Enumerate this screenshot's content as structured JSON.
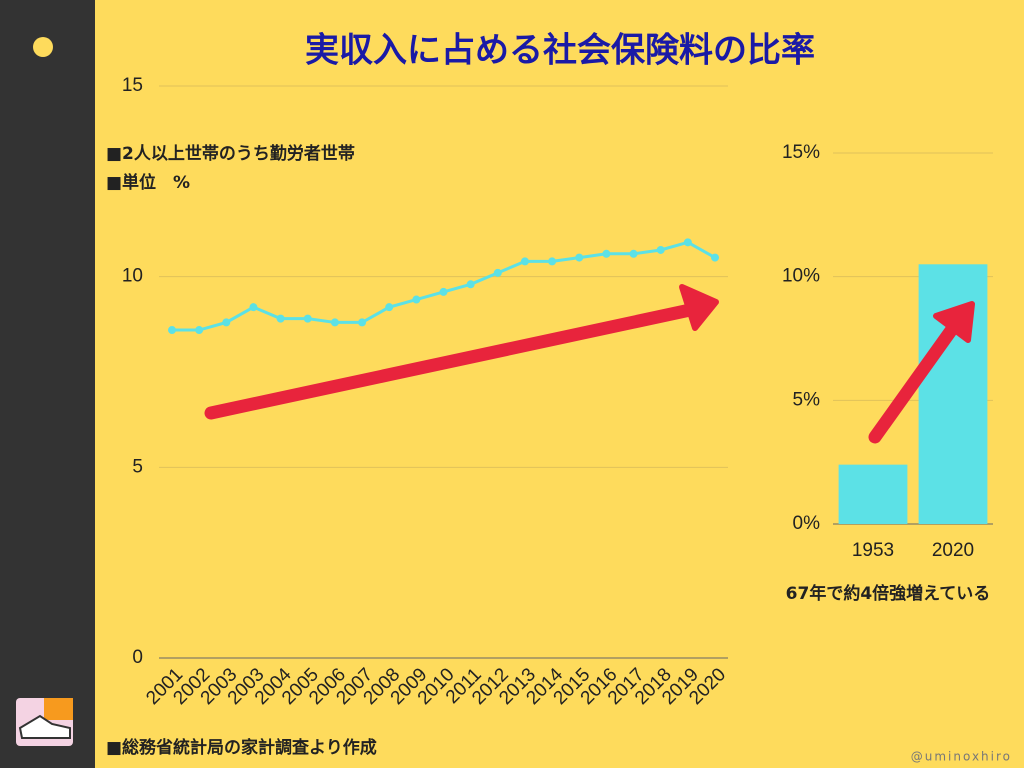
{
  "title": "実収入に占める社会保険料の比率",
  "credit": "@uminoxhiro",
  "chart_data": [
    {
      "type": "line",
      "notes": [
        "■2人以上世帯のうち勤労者世帯",
        "■単位　%"
      ],
      "source": "■総務省統計局の家計調査より作成",
      "categories": [
        "2001",
        "2002",
        "2003",
        "2003",
        "2004",
        "2005",
        "2006",
        "2007",
        "2008",
        "2009",
        "2010",
        "2011",
        "2012",
        "2013",
        "2014",
        "2015",
        "2016",
        "2017",
        "2018",
        "2019",
        "2020"
      ],
      "values": [
        8.6,
        8.6,
        8.8,
        9.2,
        8.9,
        8.9,
        8.8,
        8.8,
        9.2,
        9.4,
        9.6,
        9.8,
        10.1,
        10.4,
        10.4,
        10.5,
        10.6,
        10.6,
        10.7,
        10.9,
        10.5
      ],
      "color": "#5ce1e6",
      "ylim": [
        0,
        15
      ],
      "yticks": [
        0,
        5,
        10,
        15
      ],
      "grid": true
    },
    {
      "type": "bar",
      "annotation": "67年で約4倍強増えている",
      "categories": [
        "1953",
        "2020"
      ],
      "values": [
        2.4,
        10.5
      ],
      "color": "#5ce1e6",
      "ylim": [
        0,
        15
      ],
      "yticks": [
        {
          "value": 0,
          "label": "0%"
        },
        {
          "value": 5,
          "label": "5%"
        },
        {
          "value": 10,
          "label": "10%"
        },
        {
          "value": 15,
          "label": "15%"
        }
      ],
      "grid": true
    }
  ]
}
